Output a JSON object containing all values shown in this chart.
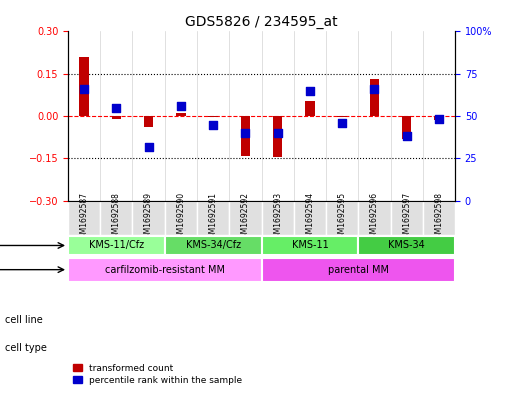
{
  "title": "GDS5826 / 234595_at",
  "samples": [
    "GSM1692587",
    "GSM1692588",
    "GSM1692589",
    "GSM1692590",
    "GSM1692591",
    "GSM1692592",
    "GSM1692593",
    "GSM1692594",
    "GSM1692595",
    "GSM1692596",
    "GSM1692597",
    "GSM1692598"
  ],
  "transformed_count": [
    0.21,
    -0.01,
    -0.04,
    0.01,
    -0.005,
    -0.14,
    -0.145,
    0.055,
    -0.005,
    0.13,
    -0.08,
    -0.015
  ],
  "percentile_rank": [
    66,
    55,
    32,
    56,
    45,
    40,
    40,
    65,
    46,
    66,
    38,
    48
  ],
  "ylim_left": [
    -0.3,
    0.3
  ],
  "ylim_right": [
    0,
    100
  ],
  "yticks_left": [
    -0.3,
    -0.15,
    0,
    0.15,
    0.3
  ],
  "yticks_right": [
    0,
    25,
    50,
    75,
    100
  ],
  "bar_color_red": "#C00000",
  "bar_color_blue": "#0000CC",
  "cell_line_groups": [
    {
      "label": "KMS-11/Cfz",
      "start": 0,
      "end": 3,
      "color": "#99FF99"
    },
    {
      "label": "KMS-34/Cfz",
      "start": 3,
      "end": 6,
      "color": "#66DD66"
    },
    {
      "label": "KMS-11",
      "start": 6,
      "end": 9,
      "color": "#66EE66"
    },
    {
      "label": "KMS-34",
      "start": 9,
      "end": 12,
      "color": "#44CC44"
    }
  ],
  "cell_type_groups": [
    {
      "label": "carfilzomib-resistant MM",
      "start": 0,
      "end": 6,
      "color": "#FF99FF"
    },
    {
      "label": "parental MM",
      "start": 6,
      "end": 12,
      "color": "#EE55EE"
    }
  ],
  "cell_line_label": "cell line",
  "cell_type_label": "cell type",
  "legend_red": "transformed count",
  "legend_blue": "percentile rank within the sample",
  "bar_width": 0.3,
  "dot_size": 40
}
